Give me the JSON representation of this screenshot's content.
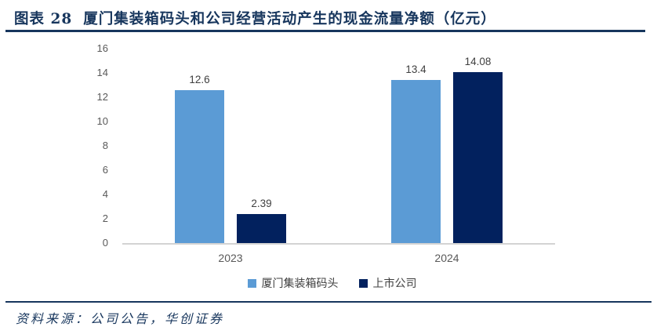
{
  "header": {
    "label": "图表 28",
    "title": "厦门集装箱码头和公司经营活动产生的现金流量净额（亿元）"
  },
  "footer": {
    "source": "资料来源：公司公告，华创证券"
  },
  "colors": {
    "accent_navy": "#17365D",
    "series_light_blue": "#5B9BD5",
    "series_dark_navy": "#02215E",
    "axis_text": "#595959",
    "axis_line": "#D3D3D3",
    "data_label": "#404040"
  },
  "chart_data": {
    "type": "bar",
    "title": "厦门集装箱码头和公司经营活动产生的现金流量净额（亿元）",
    "categories": [
      "2023",
      "2024"
    ],
    "series": [
      {
        "name": "厦门集装箱码头",
        "color": "#5B9BD5",
        "values": [
          12.6,
          13.4
        ]
      },
      {
        "name": "上市公司",
        "color": "#02215E",
        "values": [
          2.39,
          14.08
        ]
      }
    ],
    "data_labels": [
      [
        "12.6",
        "13.4"
      ],
      [
        "2.39",
        "14.08"
      ]
    ],
    "xlabel": "",
    "ylabel": "",
    "ylim": [
      0,
      16
    ],
    "yticks": [
      0,
      2,
      4,
      6,
      8,
      10,
      12,
      14,
      16
    ],
    "grid": false,
    "legend_position": "bottom"
  }
}
